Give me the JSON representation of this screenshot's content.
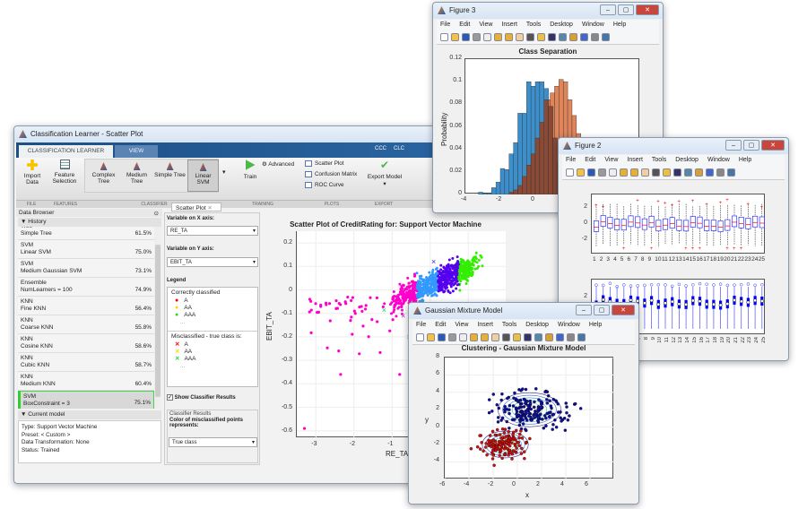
{
  "main_window": {
    "title": "Classification Learner - Scatter Plot",
    "tabs": [
      "CLASSIFICATION LEARNER",
      "VIEW"
    ],
    "quick": [
      "CCC",
      "CLC"
    ],
    "toolstrip": {
      "import": "Import Data",
      "feature": "Feature Selection",
      "classifiers": [
        "Complex Tree",
        "Medium Tree",
        "Simple Tree",
        "Linear SVM"
      ],
      "train": "Train",
      "advanced": "Advanced",
      "plots": [
        "Scatter Plot",
        "Confusion Matrix",
        "ROC Curve"
      ],
      "export": "Export Model"
    },
    "sections": [
      "FILE",
      "FEATURES",
      "CLASSIFIER",
      "TRAINING",
      "PLOTS",
      "EXPORT"
    ],
    "data_browser": "Data Browser",
    "history_label": "History",
    "history": [
      {
        "type": "Tree",
        "name": "Simple Tree",
        "acc": "61.5%"
      },
      {
        "type": "SVM",
        "name": "Linear SVM",
        "acc": "75.0%"
      },
      {
        "type": "SVM",
        "name": "Medium Gaussian SVM",
        "acc": "73.1%"
      },
      {
        "type": "Ensemble",
        "name": "NumLearners = 100",
        "acc": "74.9%"
      },
      {
        "type": "KNN",
        "name": "Fine KNN",
        "acc": "56.4%"
      },
      {
        "type": "KNN",
        "name": "Coarse KNN",
        "acc": "55.8%"
      },
      {
        "type": "KNN",
        "name": "Cosine KNN",
        "acc": "58.6%"
      },
      {
        "type": "KNN",
        "name": "Cubic KNN",
        "acc": "58.7%"
      },
      {
        "type": "KNN",
        "name": "Medium KNN",
        "acc": "60.4%"
      },
      {
        "type": "SVM",
        "name": "BoxConstraint = 3",
        "acc": "75.1%"
      }
    ],
    "current_model_label": "Current model",
    "current_model": [
      "Type: Support Vector Machine",
      "Preset: < Custom >",
      "Data Transformation: None",
      "Status: Trained"
    ],
    "plot_tab": "Scatter Plot",
    "x_var_label": "Variable on X axis:",
    "x_var": "RE_TA",
    "y_var_label": "Variable on Y axis:",
    "y_var": "EBIT_TA",
    "legend_label": "Legend",
    "correct_label": "Correctly classified",
    "mis_label": "Misclassified - true class is:",
    "classes": [
      {
        "name": "A",
        "color": "#ff0000"
      },
      {
        "name": "AA",
        "color": "#ffd800"
      },
      {
        "name": "AAA",
        "color": "#22dd22"
      }
    ],
    "ellipsis": "...",
    "show_results": "Show Classifier Results",
    "show_results_checked": true,
    "results_group": "Classifier Results",
    "color_label": "Color of misclassified points represents:",
    "color_value": "True class"
  },
  "scatter": {
    "title": "Scatter Plot of CreditRating for: Support Vector Machine",
    "xlabel": "RE_TA",
    "ylabel": "EBIT_TA",
    "xticks": [
      "-3",
      "-2",
      "-1"
    ],
    "yticks": [
      "0.2",
      "0.1",
      "0",
      "-0.1",
      "-0.2",
      "-0.3",
      "-0.4",
      "-0.5",
      "-0.6"
    ]
  },
  "figure3": {
    "title": "Figure 3",
    "menu": [
      "File",
      "Edit",
      "View",
      "Insert",
      "Tools",
      "Desktop",
      "Window",
      "Help"
    ],
    "chart_title": "Class Separation",
    "ylabel": "Probability",
    "yticks": [
      "0.12",
      "0.1",
      "0.08",
      "0.06",
      "0.04",
      "0.02",
      "0"
    ],
    "xticks": [
      "-4",
      "-2",
      "0"
    ],
    "bin_start": -3.25,
    "bin_width": 0.25,
    "blue": [
      0.002,
      0.001,
      0.001,
      0.006,
      0.011,
      0.023,
      0.022,
      0.036,
      0.046,
      0.072,
      0.072,
      0.1,
      0.096,
      0.1,
      0.1,
      0.094,
      0.078,
      0.05,
      0.028,
      0.01,
      0.004
    ],
    "orange": [
      0,
      0,
      0,
      0,
      0,
      0.002,
      0.004,
      0.008,
      0.016,
      0.026,
      0.036,
      0.05,
      0.064,
      0.084,
      0.09,
      0.096,
      0.102,
      0.1,
      0.084,
      0.07,
      0.054,
      0.04,
      0.02,
      0.01,
      0.004
    ],
    "colors": {
      "blue": "#3d8fcc",
      "orange": "#e0845a",
      "overlap": "#8a4a36"
    }
  },
  "figure2": {
    "title": "Figure 2",
    "menu": [
      "File",
      "Edit",
      "View",
      "Insert",
      "Tools",
      "Desktop",
      "Window",
      "Help"
    ],
    "yticks_top": [
      "2",
      "0",
      "-2"
    ],
    "ytick_bottom": "2",
    "categories": [
      "1",
      "2",
      "3",
      "4",
      "5",
      "6",
      "7",
      "8",
      "9",
      "10",
      "11",
      "12",
      "13",
      "14",
      "15",
      "16",
      "17",
      "18",
      "19",
      "20",
      "21",
      "22",
      "23",
      "24",
      "25"
    ]
  },
  "gmm": {
    "title": "Gaussian Mixture Model",
    "menu": [
      "File",
      "Edit",
      "View",
      "Insert",
      "Tools",
      "Desktop",
      "Window",
      "Help"
    ],
    "chart_title": "Clustering - Gaussian Mixture Model",
    "xlabel": "x",
    "ylabel": "y",
    "xticks": [
      "-6",
      "-4",
      "-2",
      "0",
      "2",
      "4",
      "6"
    ],
    "yticks": [
      "8",
      "6",
      "4",
      "2",
      "0",
      "-2",
      "-4"
    ],
    "colors": {
      "cluster1": "#1010a0",
      "cluster2": "#d01010"
    }
  }
}
